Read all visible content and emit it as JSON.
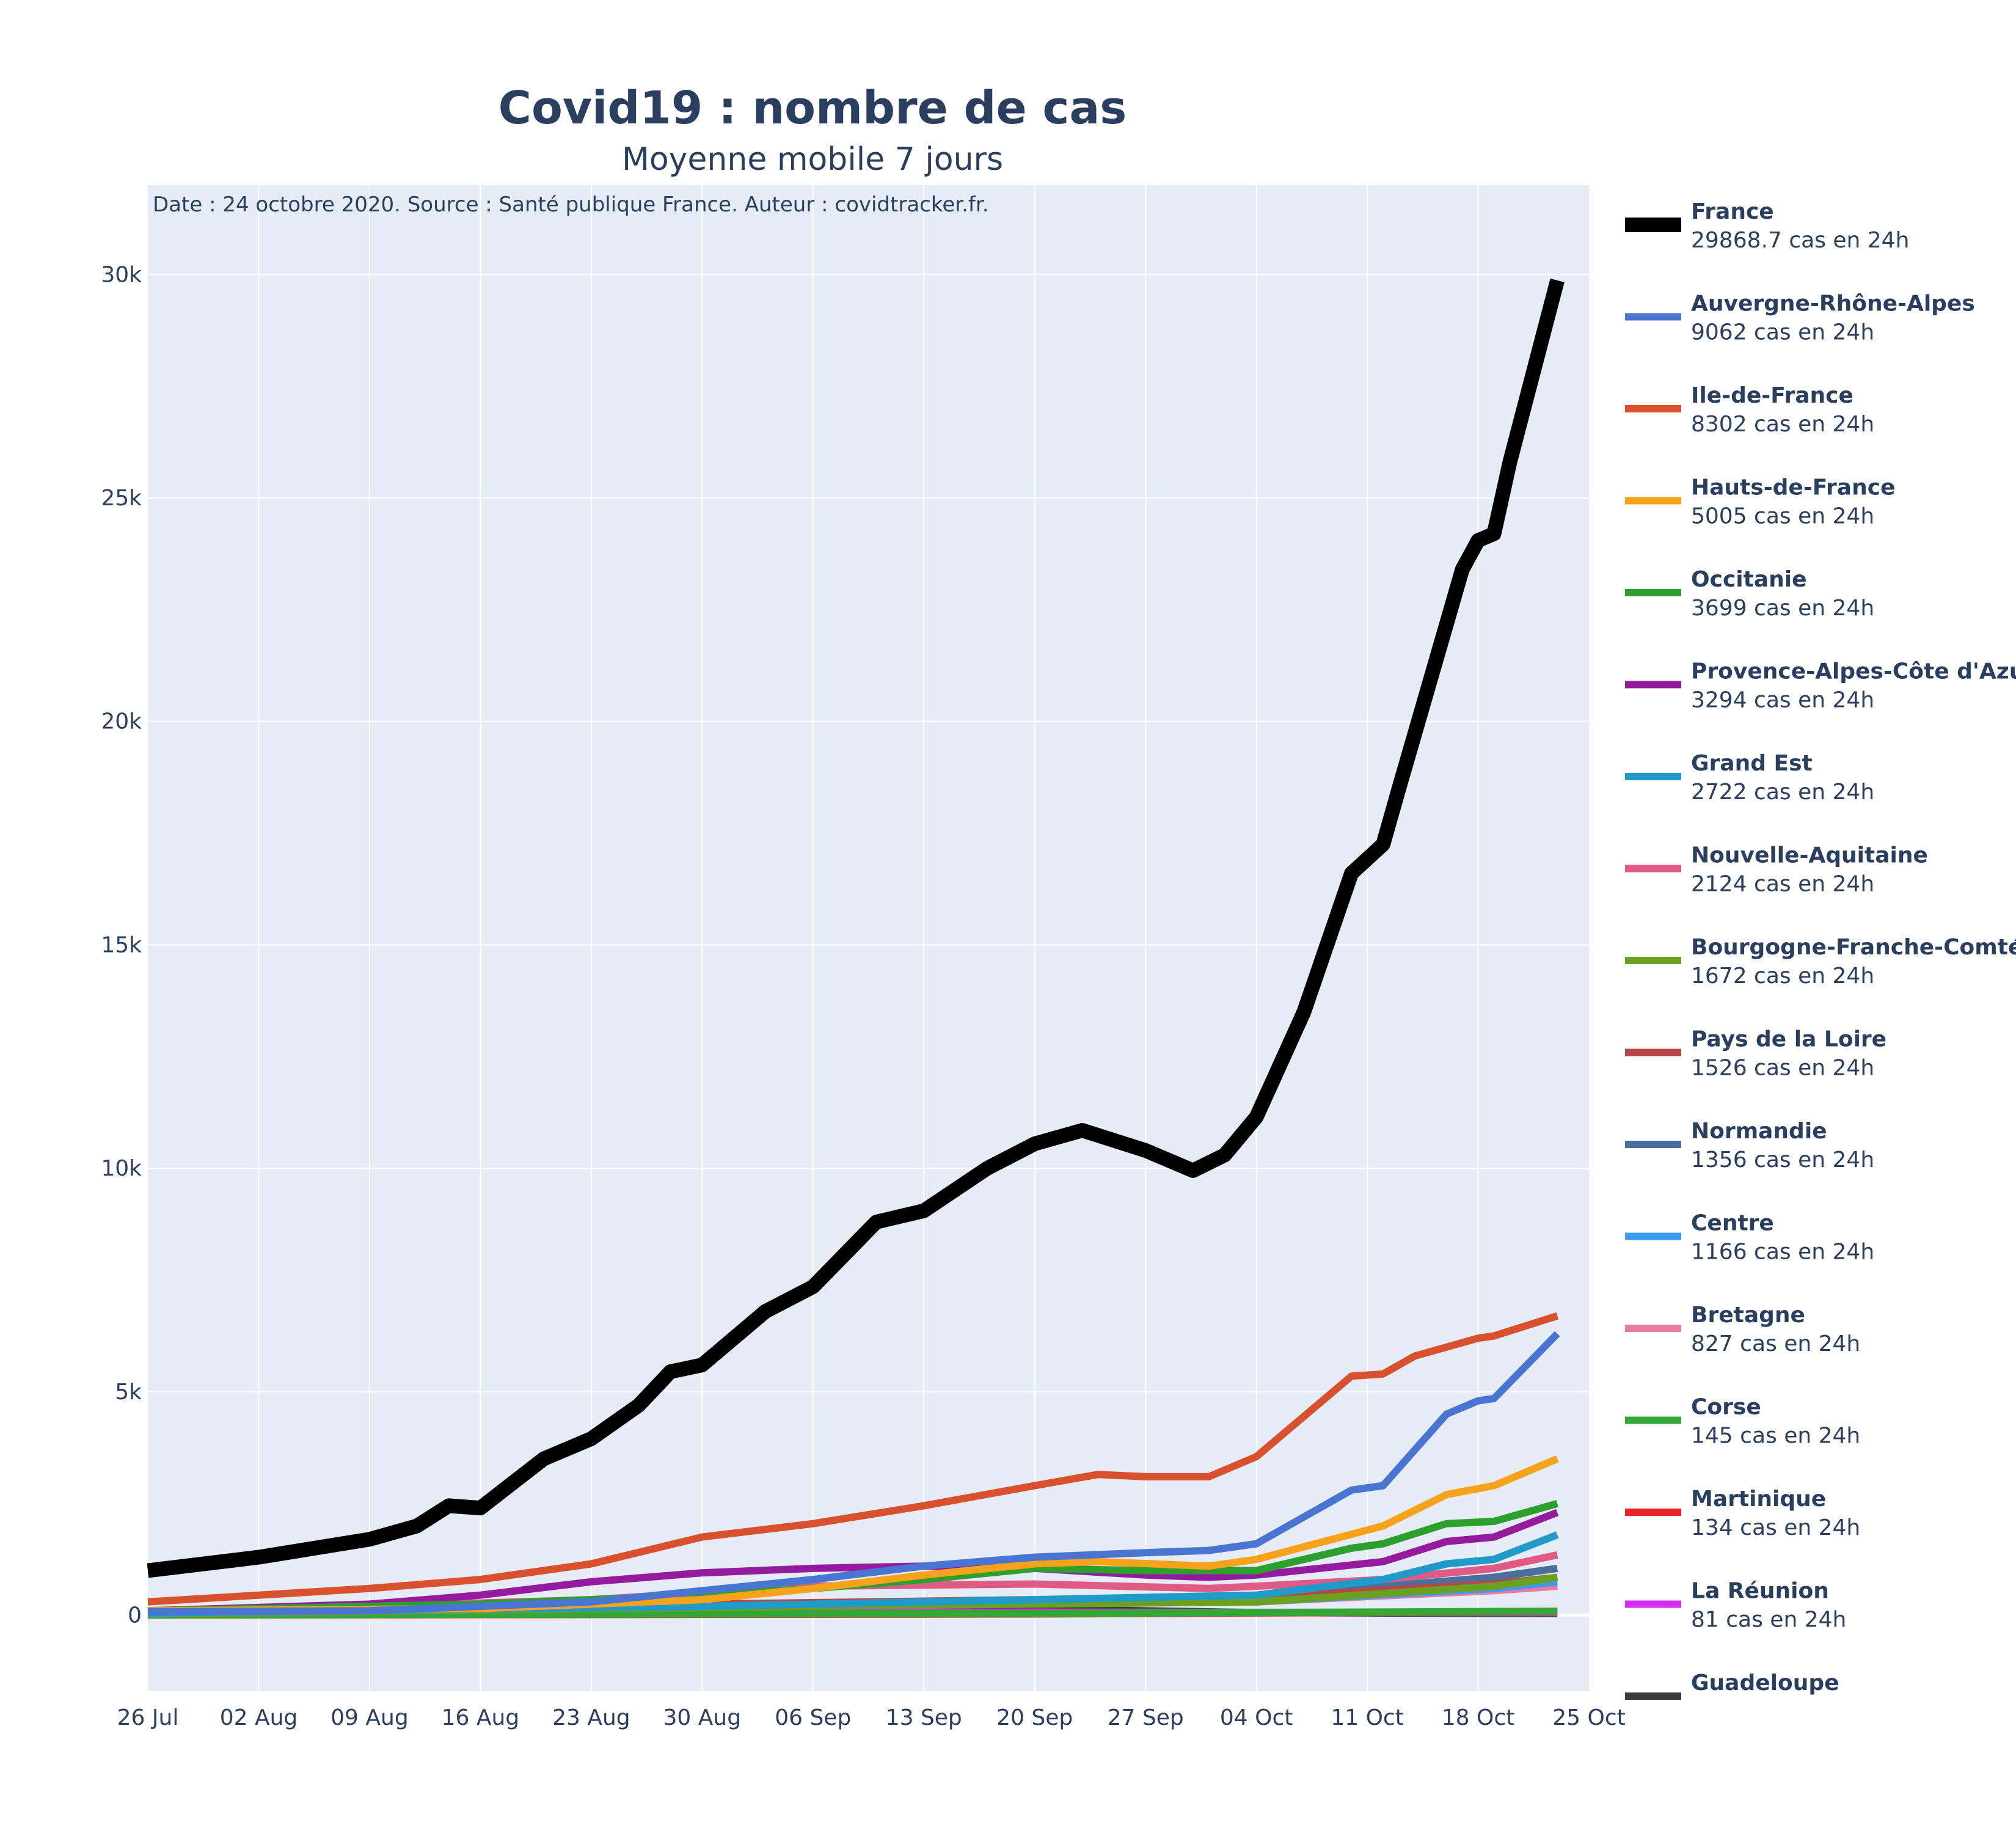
{
  "chart_data": {
    "type": "line",
    "title": "Covid19 : nombre de cas",
    "subtitle": "Moyenne mobile 7 jours",
    "annotation": "Date : 24 octobre 2020. Source : Santé publique France. Auteur : covidtracker.fr.",
    "xlabel": "",
    "ylabel": "",
    "x_start": "2020-07-26",
    "x_tick_labels": [
      "26 Jul",
      "02 Aug",
      "09 Aug",
      "16 Aug",
      "23 Aug",
      "30 Aug",
      "06 Sep",
      "13 Sep",
      "20 Sep",
      "27 Sep",
      "04 Oct",
      "11 Oct",
      "18 Oct",
      "25 Oct"
    ],
    "xlim": [
      "2020-07-26",
      "2020-10-25"
    ],
    "ylim": [
      -1700,
      32000
    ],
    "y_ticks": [
      0,
      5000,
      10000,
      15000,
      20000,
      25000,
      30000
    ],
    "y_tick_labels": [
      "0",
      "5k",
      "10k",
      "15k",
      "20k",
      "25k",
      "30k"
    ],
    "grid": true,
    "legend_position": "right",
    "series": [
      {
        "name": "France",
        "value_label": "29868.7 cas en 24h",
        "color": "#000000",
        "points": [
          [
            "2020-07-26",
            1000
          ],
          [
            "2020-08-02",
            1300
          ],
          [
            "2020-08-09",
            1700
          ],
          [
            "2020-08-12",
            2000
          ],
          [
            "2020-08-14",
            2450
          ],
          [
            "2020-08-16",
            2400
          ],
          [
            "2020-08-20",
            3500
          ],
          [
            "2020-08-23",
            3950
          ],
          [
            "2020-08-26",
            4700
          ],
          [
            "2020-08-28",
            5450
          ],
          [
            "2020-08-30",
            5600
          ],
          [
            "2020-09-03",
            6800
          ],
          [
            "2020-09-06",
            7350
          ],
          [
            "2020-09-10",
            8800
          ],
          [
            "2020-09-13",
            9050
          ],
          [
            "2020-09-17",
            10000
          ],
          [
            "2020-09-20",
            10550
          ],
          [
            "2020-09-23",
            10850
          ],
          [
            "2020-09-27",
            10400
          ],
          [
            "2020-09-30",
            9950
          ],
          [
            "2020-10-02",
            10300
          ],
          [
            "2020-10-04",
            11150
          ],
          [
            "2020-10-07",
            13500
          ],
          [
            "2020-10-10",
            16600
          ],
          [
            "2020-10-12",
            17250
          ],
          [
            "2020-10-13",
            18500
          ],
          [
            "2020-10-17",
            23400
          ],
          [
            "2020-10-18",
            24050
          ],
          [
            "2020-10-19",
            24200
          ],
          [
            "2020-10-20",
            25800
          ],
          [
            "2020-10-23",
            29868.7
          ]
        ]
      },
      {
        "name": "Auvergne-Rhône-Alpes",
        "value_label": "9062 cas en 24h",
        "color": "#4a74d1",
        "points": [
          [
            "2020-07-26",
            80
          ],
          [
            "2020-08-09",
            100
          ],
          [
            "2020-08-23",
            300
          ],
          [
            "2020-09-06",
            800
          ],
          [
            "2020-09-13",
            1100
          ],
          [
            "2020-09-20",
            1300
          ],
          [
            "2020-09-27",
            1400
          ],
          [
            "2020-10-01",
            1450
          ],
          [
            "2020-10-04",
            1600
          ],
          [
            "2020-10-07",
            2200
          ],
          [
            "2020-10-10",
            2800
          ],
          [
            "2020-10-12",
            2900
          ],
          [
            "2020-10-16",
            4500
          ],
          [
            "2020-10-18",
            4800
          ],
          [
            "2020-10-19",
            4850
          ],
          [
            "2020-10-23",
            6300
          ]
        ]
      },
      {
        "name": "Ile-de-France",
        "value_label": "8302 cas en 24h",
        "color": "#d9502f",
        "points": [
          [
            "2020-07-26",
            300
          ],
          [
            "2020-08-02",
            450
          ],
          [
            "2020-08-09",
            600
          ],
          [
            "2020-08-16",
            800
          ],
          [
            "2020-08-23",
            1150
          ],
          [
            "2020-08-30",
            1750
          ],
          [
            "2020-09-06",
            2050
          ],
          [
            "2020-09-13",
            2450
          ],
          [
            "2020-09-20",
            2900
          ],
          [
            "2020-09-24",
            3150
          ],
          [
            "2020-09-27",
            3100
          ],
          [
            "2020-10-01",
            3100
          ],
          [
            "2020-10-04",
            3550
          ],
          [
            "2020-10-10",
            5350
          ],
          [
            "2020-10-12",
            5400
          ],
          [
            "2020-10-14",
            5800
          ],
          [
            "2020-10-18",
            6200
          ],
          [
            "2020-10-19",
            6250
          ],
          [
            "2020-10-23",
            6700
          ]
        ]
      },
      {
        "name": "Hauts-de-France",
        "value_label": "5005 cas en 24h",
        "color": "#f7a21b",
        "points": [
          [
            "2020-07-26",
            100
          ],
          [
            "2020-08-16",
            150
          ],
          [
            "2020-08-30",
            350
          ],
          [
            "2020-09-06",
            600
          ],
          [
            "2020-09-13",
            900
          ],
          [
            "2020-09-20",
            1150
          ],
          [
            "2020-09-24",
            1200
          ],
          [
            "2020-10-01",
            1100
          ],
          [
            "2020-10-04",
            1250
          ],
          [
            "2020-10-12",
            2000
          ],
          [
            "2020-10-16",
            2700
          ],
          [
            "2020-10-19",
            2900
          ],
          [
            "2020-10-23",
            3500
          ]
        ]
      },
      {
        "name": "Occitanie",
        "value_label": "3699 cas en 24h",
        "color": "#2ca02c",
        "points": [
          [
            "2020-07-26",
            100
          ],
          [
            "2020-08-16",
            250
          ],
          [
            "2020-08-30",
            450
          ],
          [
            "2020-09-06",
            600
          ],
          [
            "2020-09-13",
            800
          ],
          [
            "2020-09-20",
            1050
          ],
          [
            "2020-09-27",
            1000
          ],
          [
            "2020-10-04",
            1000
          ],
          [
            "2020-10-10",
            1500
          ],
          [
            "2020-10-12",
            1600
          ],
          [
            "2020-10-16",
            2050
          ],
          [
            "2020-10-19",
            2100
          ],
          [
            "2020-10-23",
            2500
          ]
        ]
      },
      {
        "name": "Provence-Alpes-Côte d'Azur",
        "value_label": "3294 cas en 24h",
        "color": "#951b9e",
        "points": [
          [
            "2020-07-26",
            100
          ],
          [
            "2020-08-09",
            250
          ],
          [
            "2020-08-16",
            450
          ],
          [
            "2020-08-23",
            750
          ],
          [
            "2020-08-30",
            950
          ],
          [
            "2020-09-06",
            1050
          ],
          [
            "2020-09-13",
            1100
          ],
          [
            "2020-09-20",
            1050
          ],
          [
            "2020-09-27",
            900
          ],
          [
            "2020-10-01",
            850
          ],
          [
            "2020-10-04",
            900
          ],
          [
            "2020-10-12",
            1200
          ],
          [
            "2020-10-16",
            1650
          ],
          [
            "2020-10-19",
            1750
          ],
          [
            "2020-10-23",
            2300
          ]
        ]
      },
      {
        "name": "Grand Est",
        "value_label": "2722 cas en 24h",
        "color": "#1f9ac9",
        "points": [
          [
            "2020-07-26",
            50
          ],
          [
            "2020-08-30",
            200
          ],
          [
            "2020-09-20",
            350
          ],
          [
            "2020-10-04",
            450
          ],
          [
            "2020-10-12",
            800
          ],
          [
            "2020-10-16",
            1150
          ],
          [
            "2020-10-19",
            1250
          ],
          [
            "2020-10-23",
            1800
          ]
        ]
      },
      {
        "name": "Nouvelle-Aquitaine",
        "value_label": "2124 cas en 24h",
        "color": "#e05a86",
        "points": [
          [
            "2020-07-26",
            50
          ],
          [
            "2020-08-23",
            350
          ],
          [
            "2020-09-06",
            650
          ],
          [
            "2020-09-20",
            700
          ],
          [
            "2020-10-01",
            600
          ],
          [
            "2020-10-04",
            650
          ],
          [
            "2020-10-12",
            800
          ],
          [
            "2020-10-19",
            1050
          ],
          [
            "2020-10-23",
            1350
          ]
        ]
      },
      {
        "name": "Bourgogne-Franche-Comté",
        "value_label": "1672 cas en 24h",
        "color": "#6aa121",
        "points": [
          [
            "2020-07-26",
            30
          ],
          [
            "2020-09-06",
            200
          ],
          [
            "2020-10-04",
            300
          ],
          [
            "2020-10-19",
            650
          ],
          [
            "2020-10-23",
            850
          ]
        ]
      },
      {
        "name": "Pays de la Loire",
        "value_label": "1526 cas en 24h",
        "color": "#b94646",
        "points": [
          [
            "2020-07-26",
            60
          ],
          [
            "2020-08-30",
            250
          ],
          [
            "2020-09-20",
            350
          ],
          [
            "2020-10-04",
            400
          ],
          [
            "2020-10-19",
            700
          ],
          [
            "2020-10-23",
            850
          ]
        ]
      },
      {
        "name": "Normandie",
        "value_label": "1356 cas en 24h",
        "color": "#4b6f9c",
        "points": [
          [
            "2020-07-26",
            30
          ],
          [
            "2020-09-06",
            250
          ],
          [
            "2020-09-20",
            300
          ],
          [
            "2020-10-04",
            450
          ],
          [
            "2020-10-12",
            650
          ],
          [
            "2020-10-19",
            850
          ],
          [
            "2020-10-23",
            1050
          ]
        ]
      },
      {
        "name": "Centre",
        "value_label": "1166 cas en 24h",
        "color": "#3d9be9",
        "points": [
          [
            "2020-07-26",
            30
          ],
          [
            "2020-09-13",
            300
          ],
          [
            "2020-10-04",
            300
          ],
          [
            "2020-10-19",
            600
          ],
          [
            "2020-10-23",
            750
          ]
        ]
      },
      {
        "name": "Bretagne",
        "value_label": "827 cas en 24h",
        "color": "#e67ba8",
        "points": [
          [
            "2020-07-26",
            40
          ],
          [
            "2020-08-23",
            200
          ],
          [
            "2020-09-13",
            250
          ],
          [
            "2020-10-04",
            300
          ],
          [
            "2020-10-19",
            550
          ],
          [
            "2020-10-23",
            650
          ]
        ]
      },
      {
        "name": "Corse",
        "value_label": "145 cas en 24h",
        "color": "#33a837",
        "points": [
          [
            "2020-07-26",
            10
          ],
          [
            "2020-09-20",
            40
          ],
          [
            "2020-10-23",
            90
          ]
        ]
      },
      {
        "name": "Martinique",
        "value_label": "134 cas en 24h",
        "color": "#e8242a",
        "points": [
          [
            "2020-07-26",
            5
          ],
          [
            "2020-09-20",
            30
          ],
          [
            "2020-10-23",
            80
          ]
        ]
      },
      {
        "name": "La Réunion",
        "value_label": "81 cas en 24h",
        "color": "#d62ef0",
        "points": [
          [
            "2020-07-26",
            20
          ],
          [
            "2020-09-20",
            70
          ],
          [
            "2020-10-23",
            60
          ]
        ]
      },
      {
        "name": "Guadeloupe",
        "value_label": "",
        "color": "#3a3a3a",
        "points": [
          [
            "2020-07-26",
            10
          ],
          [
            "2020-08-23",
            60
          ],
          [
            "2020-09-06",
            140
          ],
          [
            "2020-09-20",
            140
          ],
          [
            "2020-10-04",
            60
          ],
          [
            "2020-10-23",
            40
          ]
        ]
      }
    ]
  }
}
